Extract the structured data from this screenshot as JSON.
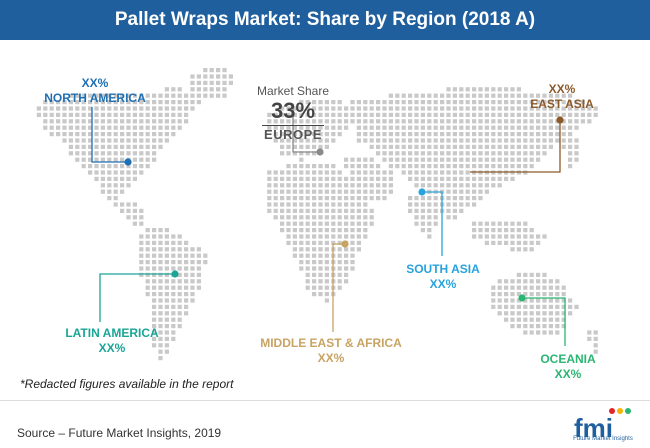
{
  "title": "Pallet Wraps Market: Share by Region (2018 A)",
  "market_share": {
    "caption": "Market Share",
    "value": "33%",
    "region": "EUROPE"
  },
  "regions": [
    {
      "id": "north-america",
      "pct": "XX%",
      "name": "NORTH AMERICA",
      "color": "#1f6fb3"
    },
    {
      "id": "east-asia",
      "pct": "XX%",
      "name": "EAST ASIA",
      "color": "#8b5a2b"
    },
    {
      "id": "south-asia",
      "pct": "XX%",
      "name": "SOUTH ASIA",
      "color": "#29a3dc"
    },
    {
      "id": "latin-america",
      "pct": "XX%",
      "name": "LATIN AMERICA",
      "color": "#1ba596"
    },
    {
      "id": "middle-east-africa",
      "pct": "XX%",
      "name": "MIDDLE EAST & AFRICA",
      "color": "#c8a464"
    },
    {
      "id": "oceania",
      "pct": "XX%",
      "name": "OCEANIA",
      "color": "#2bb673"
    }
  ],
  "europe_color": "#8a8a8a",
  "map_dot_color": "#c9c9c9",
  "note": "*Redacted figures available in the report",
  "source": "Source – Future Market Insights, 2019",
  "logo": {
    "text": "fmi",
    "tagline": "Future Market Insights"
  }
}
